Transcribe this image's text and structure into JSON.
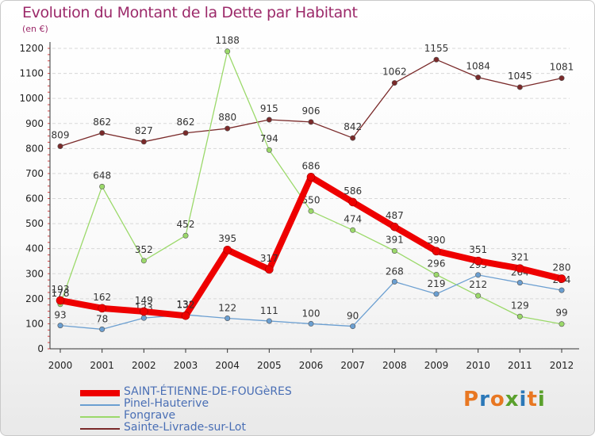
{
  "title": "Evolution du Montant de la Dette par Habitant",
  "unit": "(en €)",
  "logo": {
    "letters": [
      "P",
      "r",
      "o",
      "x",
      "i",
      "t",
      "i"
    ],
    "colors": [
      "#e87722",
      "#2b78b8",
      "#e87722",
      "#5aa02c",
      "#2b78b8",
      "#e87722",
      "#5aa02c"
    ]
  },
  "chart_data": {
    "type": "line",
    "x": [
      "2000",
      "2001",
      "2002",
      "2003",
      "2004",
      "2005",
      "2006",
      "2007",
      "2008",
      "2009",
      "2010",
      "2011",
      "2012"
    ],
    "ylim": [
      0,
      1200
    ],
    "yticks": [
      0,
      100,
      200,
      300,
      400,
      500,
      600,
      700,
      800,
      900,
      1000,
      1100,
      1200
    ],
    "grid": true,
    "legend_position": "bottom-left",
    "series": [
      {
        "name": "SAINT-ÉTIENNE-DE-FOUGèRES",
        "color": "#ee0000",
        "values": [
          193,
          162,
          149,
          132,
          395,
          317,
          686,
          586,
          487,
          390,
          351,
          321,
          280
        ]
      },
      {
        "name": "Pinel-Hauterive",
        "color": "#6b9fd1",
        "values": [
          93,
          78,
          123,
          136,
          122,
          111,
          100,
          90,
          268,
          219,
          295,
          264,
          234
        ]
      },
      {
        "name": "Fongrave",
        "color": "#9bd96a",
        "values": [
          178,
          648,
          352,
          452,
          1188,
          794,
          550,
          474,
          391,
          296,
          212,
          129,
          99
        ]
      },
      {
        "name": "Sainte-Livrade-sur-Lot",
        "color": "#7a2a2a",
        "values": [
          809,
          862,
          827,
          862,
          880,
          915,
          906,
          842,
          1062,
          1155,
          1084,
          1045,
          1081
        ]
      }
    ]
  }
}
